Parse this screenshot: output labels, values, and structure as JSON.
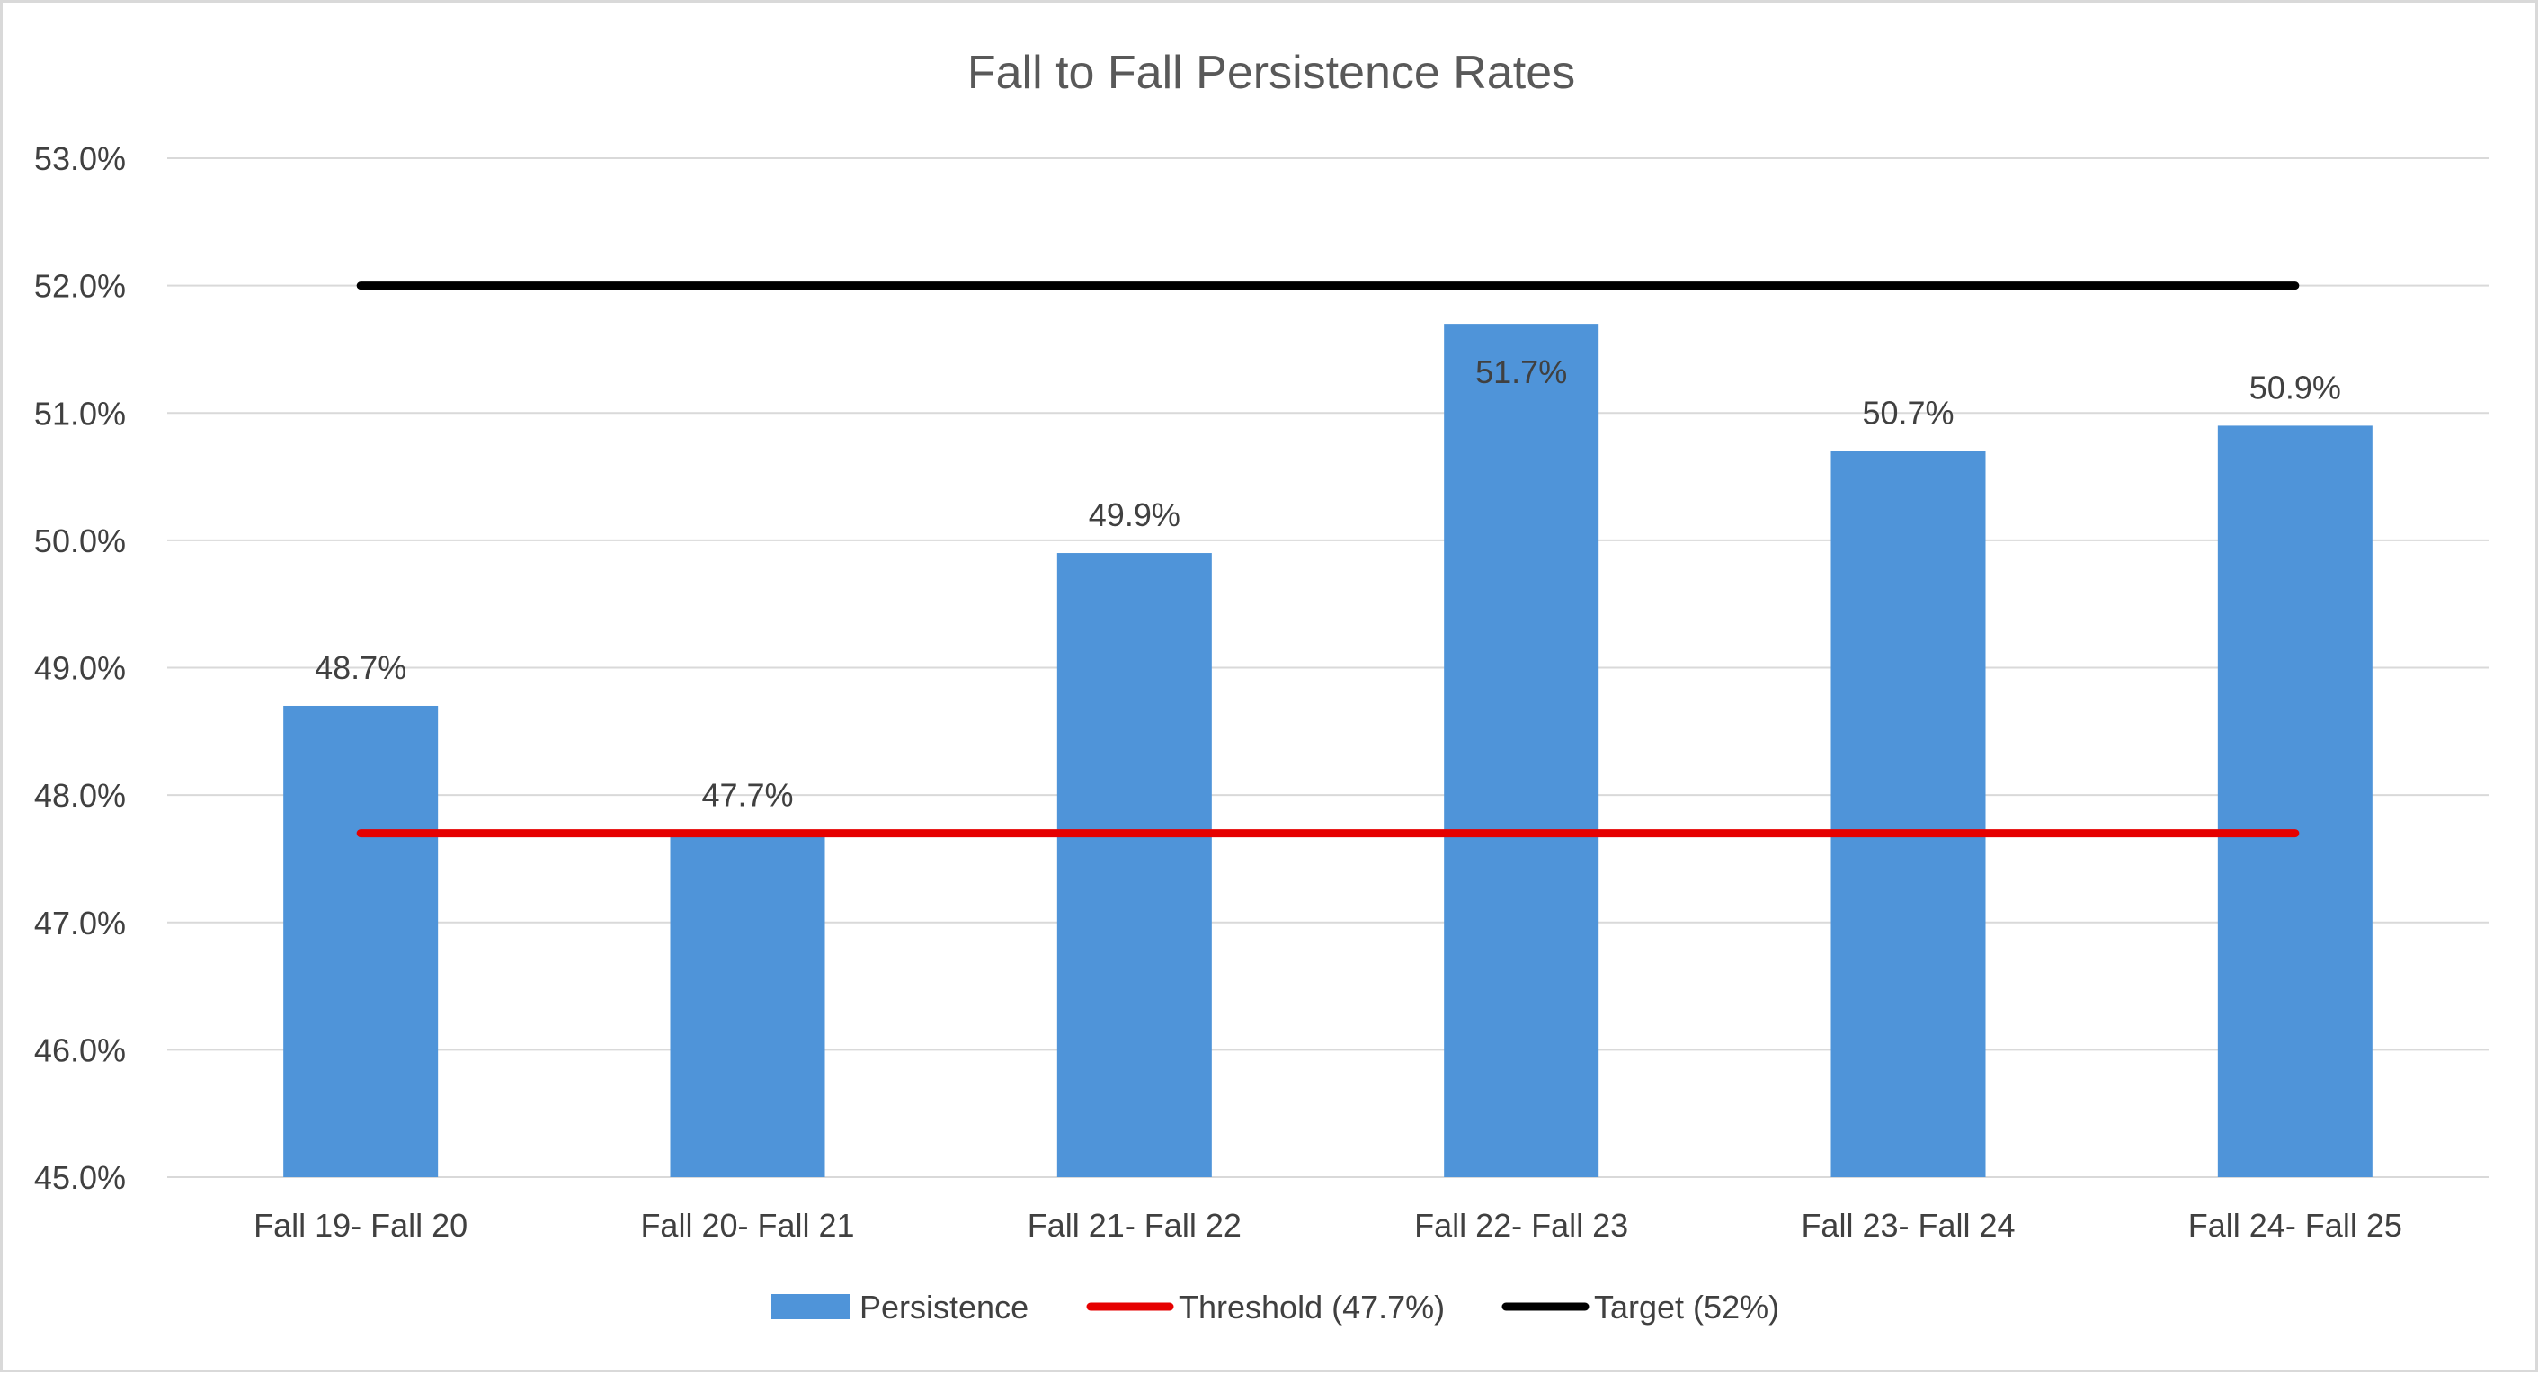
{
  "chart_data": {
    "type": "bar",
    "title": "Fall to Fall Persistence Rates",
    "xlabel": "",
    "ylabel": "",
    "categories": [
      "Fall 19- Fall 20",
      "Fall 20- Fall 21",
      "Fall 21- Fall 22",
      "Fall 22- Fall 23",
      "Fall 23- Fall 24",
      "Fall 24- Fall 25"
    ],
    "series": [
      {
        "name": "Persistence",
        "kind": "bar",
        "color": "#4f94d9",
        "values": [
          48.7,
          47.7,
          49.9,
          51.7,
          50.7,
          50.9
        ],
        "data_labels": [
          "48.7%",
          "47.7%",
          "49.9%",
          "51.7%",
          "50.7%",
          "50.9%"
        ]
      },
      {
        "name": "Threshold (47.7%)",
        "kind": "line",
        "color": "#e60000",
        "values": [
          47.7,
          47.7,
          47.7,
          47.7,
          47.7,
          47.7
        ]
      },
      {
        "name": "Target (52%)",
        "kind": "line",
        "color": "#000000",
        "values": [
          52,
          52,
          52,
          52,
          52,
          52
        ]
      }
    ],
    "ylim": [
      45,
      53
    ],
    "yticks": [
      45,
      46,
      47,
      48,
      49,
      50,
      51,
      52,
      53
    ],
    "ytick_labels": [
      "45.0%",
      "46.0%",
      "47.0%",
      "48.0%",
      "49.0%",
      "50.0%",
      "51.0%",
      "52.0%",
      "53.0%"
    ],
    "grid": true,
    "gridline_color": "#d9d9d9",
    "legend_position": "bottom"
  }
}
